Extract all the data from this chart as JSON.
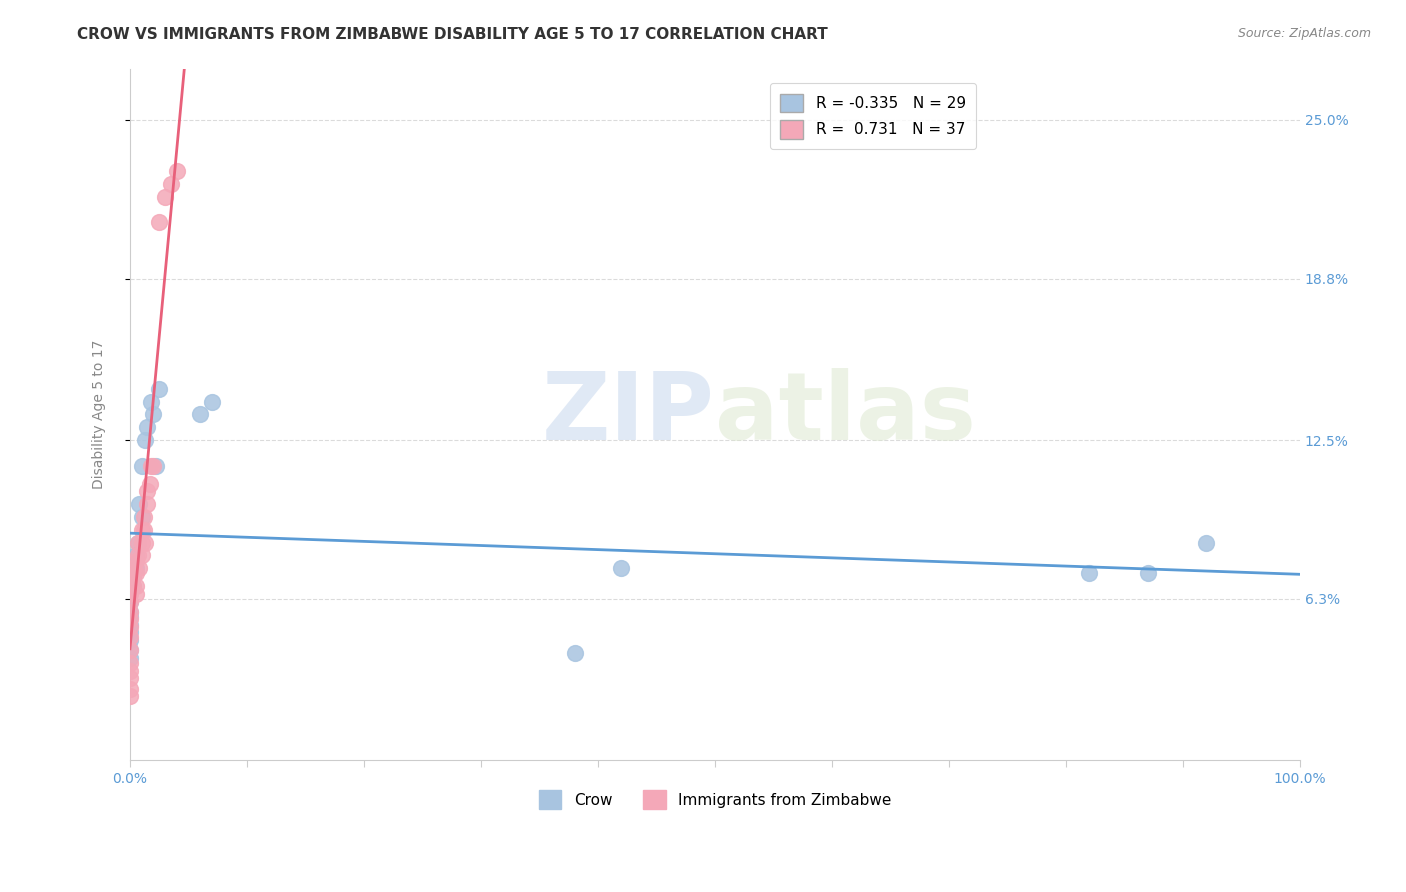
{
  "title": "CROW VS IMMIGRANTS FROM ZIMBABWE DISABILITY AGE 5 TO 17 CORRELATION CHART",
  "source": "Source: ZipAtlas.com",
  "ylabel": "Disability Age 5 to 17",
  "y_tick_labels_right": [
    "25.0%",
    "18.8%",
    "12.5%",
    "6.3%"
  ],
  "y_tick_values_right": [
    0.25,
    0.188,
    0.125,
    0.063
  ],
  "xlim": [
    0.0,
    1.0
  ],
  "ylim": [
    0.0,
    0.27
  ],
  "crow_x": [
    0.0,
    0.0,
    0.0,
    0.0,
    0.0,
    0.0,
    0.0,
    0.0,
    0.003,
    0.003,
    0.005,
    0.005,
    0.007,
    0.008,
    0.01,
    0.01,
    0.013,
    0.015,
    0.018,
    0.02,
    0.022,
    0.025,
    0.06,
    0.07,
    0.38,
    0.42,
    0.82,
    0.87,
    0.92
  ],
  "crow_y": [
    0.062,
    0.058,
    0.056,
    0.053,
    0.05,
    0.047,
    0.043,
    0.04,
    0.072,
    0.068,
    0.075,
    0.08,
    0.085,
    0.1,
    0.095,
    0.115,
    0.125,
    0.13,
    0.14,
    0.135,
    0.115,
    0.145,
    0.135,
    0.14,
    0.042,
    0.075,
    0.073,
    0.073,
    0.085
  ],
  "zimb_x": [
    0.0,
    0.0,
    0.0,
    0.0,
    0.0,
    0.0,
    0.0,
    0.0,
    0.0,
    0.0,
    0.0,
    0.0,
    0.003,
    0.003,
    0.003,
    0.005,
    0.005,
    0.005,
    0.005,
    0.007,
    0.007,
    0.008,
    0.01,
    0.01,
    0.01,
    0.012,
    0.012,
    0.013,
    0.015,
    0.015,
    0.017,
    0.018,
    0.02,
    0.025,
    0.03,
    0.035,
    0.04
  ],
  "zimb_y": [
    0.065,
    0.062,
    0.058,
    0.055,
    0.052,
    0.048,
    0.043,
    0.038,
    0.035,
    0.032,
    0.028,
    0.025,
    0.075,
    0.072,
    0.068,
    0.078,
    0.073,
    0.068,
    0.065,
    0.085,
    0.08,
    0.075,
    0.09,
    0.085,
    0.08,
    0.095,
    0.09,
    0.085,
    0.105,
    0.1,
    0.108,
    0.115,
    0.115,
    0.21,
    0.22,
    0.225,
    0.23
  ],
  "crow_R": -0.335,
  "crow_N": 29,
  "zimb_R": 0.731,
  "zimb_N": 37,
  "crow_line_color": "#5b9bd5",
  "zimb_line_color": "#e8607a",
  "crow_dot_color": "#a8c4e0",
  "zimb_dot_color": "#f4a8b8",
  "watermark_zip": "ZIP",
  "watermark_atlas": "atlas",
  "background_color": "#ffffff",
  "title_fontsize": 11,
  "axis_label_fontsize": 10,
  "tick_fontsize": 10,
  "source_fontsize": 9
}
